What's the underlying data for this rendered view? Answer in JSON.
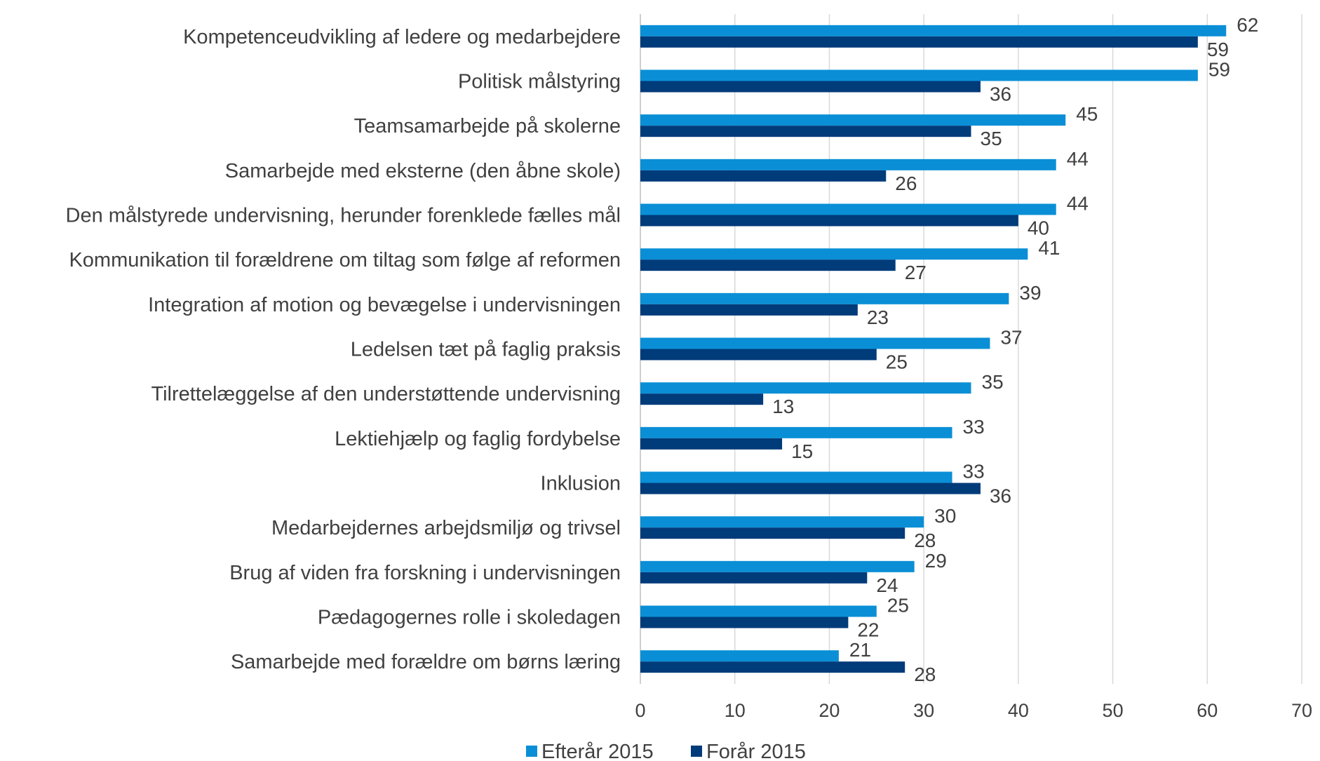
{
  "chart_data": {
    "type": "bar",
    "orientation": "horizontal",
    "categories": [
      "Kompetenceudvikling af ledere og medarbejdere",
      "Politisk målstyring",
      "Teamsamarbejde på skolerne",
      "Samarbejde med eksterne (den åbne skole)",
      "Den målstyrede undervisning, herunder forenklede fælles mål",
      "Kommunikation til forældrene om tiltag som følge af reformen",
      "Integration af motion og bevægelse i undervisningen",
      "Ledelsen tæt på faglig praksis",
      "Tilrettelæggelse af den understøttende undervisning",
      "Lektiehjælp og faglig fordybelse",
      "Inklusion",
      "Medarbejdernes arbejdsmiljø og trivsel",
      "Brug af viden fra forskning i undervisningen",
      "Pædagogernes rolle i skoledagen",
      "Samarbejde med forældre om børns læring"
    ],
    "series": [
      {
        "name": "Efterår 2015",
        "color": "#0a8fd6",
        "values": [
          62,
          59,
          45,
          44,
          44,
          41,
          39,
          37,
          35,
          33,
          33,
          30,
          29,
          25,
          21
        ]
      },
      {
        "name": "Forår 2015",
        "color": "#003b7a",
        "values": [
          59,
          36,
          35,
          26,
          40,
          27,
          23,
          25,
          13,
          15,
          36,
          28,
          24,
          22,
          28
        ]
      }
    ],
    "xlim": [
      0,
      70
    ],
    "xticks": [
      0,
      10,
      20,
      30,
      40,
      50,
      60,
      70
    ],
    "grid": true,
    "data_labels": true,
    "legend_position": "bottom"
  }
}
